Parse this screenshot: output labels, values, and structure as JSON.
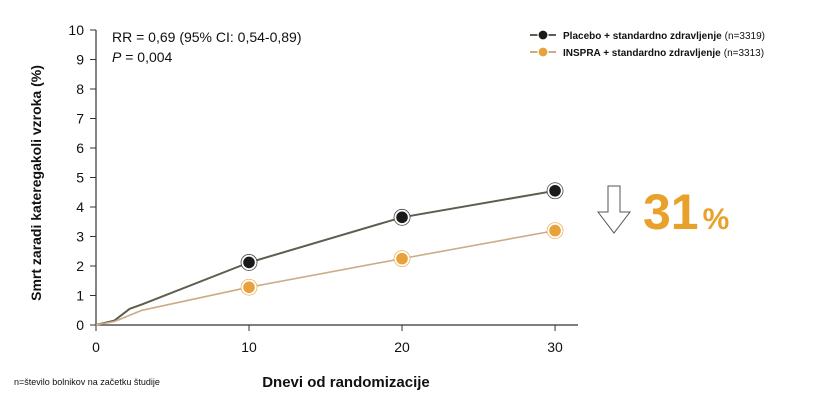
{
  "colors": {
    "placebo_line": "#5e5d4e",
    "placebo_marker": "#1a1a1a",
    "inspra_line": "#c9ad86",
    "inspra_marker": "#e8a13b",
    "reduction": "#e8a12a",
    "axis": "#333333"
  },
  "chart_data": {
    "type": "line",
    "title": "",
    "xlabel": "Dnevi od randomizacije",
    "ylabel": "Smrt zaradi kateregakoli vzroka (%)",
    "xlim": [
      0,
      31.5
    ],
    "ylim": [
      0,
      10
    ],
    "x_ticks": [
      "0",
      "10",
      "20",
      "30"
    ],
    "y_ticks": [
      "0",
      "1",
      "2",
      "3",
      "4",
      "5",
      "6",
      "7",
      "8",
      "9",
      "10"
    ],
    "legend_position": "top-right",
    "series": [
      {
        "name": "Placebo + standardno zdravljenje",
        "n_label": "(n=3319)",
        "line": [
          [
            0,
            0.0
          ],
          [
            1.2,
            0.15
          ],
          [
            2.2,
            0.55
          ],
          [
            3,
            0.7
          ],
          [
            10,
            2.12
          ],
          [
            20,
            3.65
          ],
          [
            30,
            4.55
          ]
        ],
        "markers": [
          [
            10,
            2.12
          ],
          [
            20,
            3.65
          ],
          [
            30,
            4.55
          ]
        ]
      },
      {
        "name": "INSPRA + standardno zdravljenje",
        "n_label": "(n=3313)",
        "line": [
          [
            0,
            0.0
          ],
          [
            1.2,
            0.12
          ],
          [
            3,
            0.5
          ],
          [
            10,
            1.28
          ],
          [
            20,
            2.25
          ],
          [
            30,
            3.2
          ]
        ],
        "markers": [
          [
            10,
            1.28
          ],
          [
            20,
            2.25
          ],
          [
            30,
            3.2
          ]
        ]
      }
    ],
    "annotations": {
      "rr_text": "RR = 0,69 (95% CI: 0,54-0,89)",
      "p_label": "P",
      "p_value": " = 0,004",
      "reduction_value": "31",
      "reduction_unit": "%",
      "footnote": "n=število bolnikov na začetku študije"
    }
  }
}
